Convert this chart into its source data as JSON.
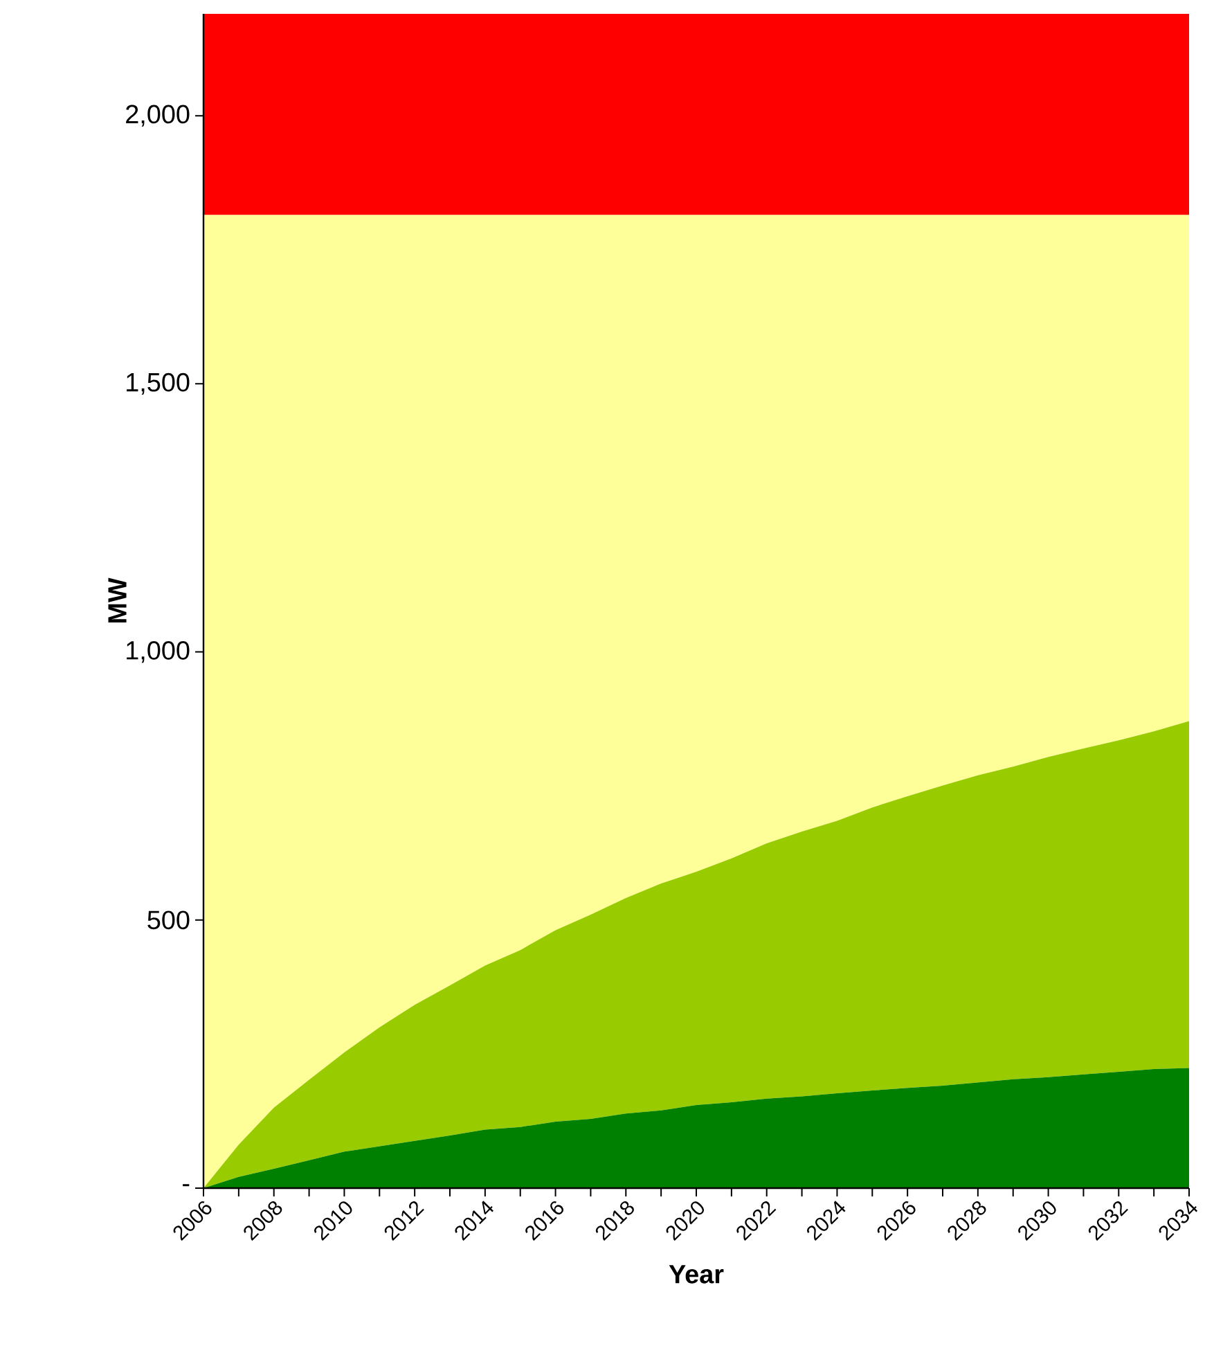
{
  "chart_data": {
    "type": "area",
    "stacked": true,
    "xlabel": "Year",
    "ylabel": "MW",
    "x": [
      2006,
      2007,
      2008,
      2009,
      2010,
      2011,
      2012,
      2013,
      2014,
      2015,
      2016,
      2017,
      2018,
      2019,
      2020,
      2021,
      2022,
      2023,
      2024,
      2025,
      2026,
      2027,
      2028,
      2029,
      2030,
      2031,
      2032,
      2033,
      2034
    ],
    "series": [
      {
        "color": "#008000",
        "values": [
          0,
          21,
          36,
          52,
          68,
          78,
          88,
          98,
          109,
          114,
          124,
          129,
          139,
          145,
          155,
          160,
          167,
          171,
          177,
          182,
          187,
          191,
          197,
          203,
          207,
          212,
          217,
          222,
          224
        ]
      },
      {
        "color": "#99cc00",
        "values": [
          0,
          60,
          114,
          150,
          185,
          222,
          254,
          280,
          306,
          330,
          357,
          381,
          402,
          423,
          435,
          455,
          476,
          494,
          508,
          528,
          544,
          560,
          573,
          583,
          597,
          608,
          618,
          630,
          647
        ]
      },
      {
        "color": "#ffff99",
        "values": [
          1815,
          1734,
          1665,
          1613,
          1562,
          1515,
          1473,
          1437,
          1400,
          1371,
          1334,
          1305,
          1274,
          1247,
          1225,
          1200,
          1172,
          1150,
          1130,
          1105,
          1084,
          1064,
          1045,
          1029,
          1011,
          995,
          980,
          963,
          944
        ]
      },
      {
        "color": "#ff0000",
        "values": [
          375,
          375,
          375,
          375,
          375,
          375,
          375,
          375,
          375,
          375,
          375,
          375,
          375,
          375,
          375,
          375,
          375,
          375,
          375,
          375,
          375,
          375,
          375,
          375,
          375,
          375,
          375,
          375,
          375
        ]
      }
    ],
    "xlim": [
      2006,
      2034
    ],
    "ylim": [
      0,
      2190
    ],
    "xticks": [
      2006,
      {
        "value": 2007,
        "label": null
      },
      2008,
      {
        "value": 2009,
        "label": null
      },
      2010,
      {
        "value": 2011,
        "label": null
      },
      2012,
      {
        "value": 2013,
        "label": null
      },
      2014,
      {
        "value": 2015,
        "label": null
      },
      2016,
      {
        "value": 2017,
        "label": null
      },
      2018,
      {
        "value": 2019,
        "label": null
      },
      2020,
      {
        "value": 2021,
        "label": null
      },
      2022,
      {
        "value": 2023,
        "label": null
      },
      2024,
      {
        "value": 2025,
        "label": null
      },
      2026,
      {
        "value": 2027,
        "label": null
      },
      2028,
      {
        "value": 2029,
        "label": null
      },
      2030,
      {
        "value": 2031,
        "label": null
      },
      2032,
      {
        "value": 2033,
        "label": null
      },
      2034
    ],
    "yticks": [
      {
        "value": 0,
        "label": "-"
      },
      500,
      {
        "value": 1000,
        "label": "1,000"
      },
      {
        "value": 1500,
        "label": "1,500"
      },
      {
        "value": 2000,
        "label": "2,000"
      }
    ]
  }
}
